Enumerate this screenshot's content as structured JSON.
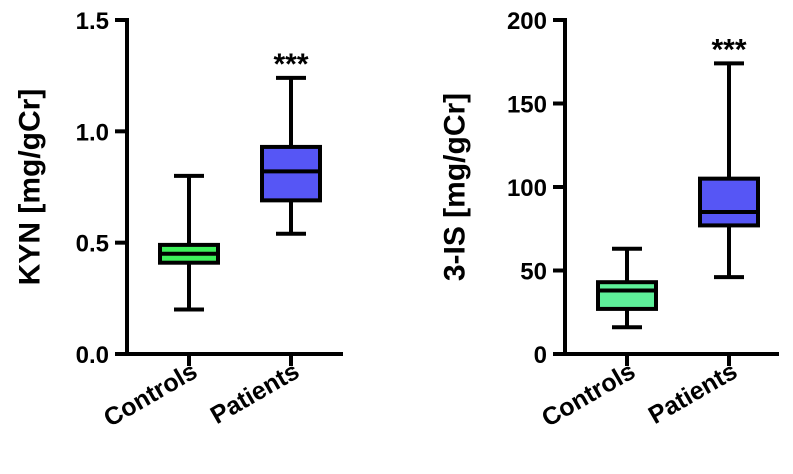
{
  "chart_data": [
    {
      "type": "box",
      "ylabel": "KYN [mg/gCr]",
      "ylim": [
        0,
        1.5
      ],
      "yticks": [
        0.0,
        0.5,
        1.0,
        1.5
      ],
      "ytick_labels": [
        "0.0",
        "0.5",
        "1.0",
        "1.5"
      ],
      "categories": [
        "Controls",
        "Patients"
      ],
      "boxes": [
        {
          "category": "Controls",
          "min": 0.2,
          "q1": 0.41,
          "median": 0.45,
          "q3": 0.49,
          "max": 0.8,
          "color": "#3df05a"
        },
        {
          "category": "Patients",
          "min": 0.54,
          "q1": 0.69,
          "median": 0.82,
          "q3": 0.93,
          "max": 1.24,
          "color": "#5656f5"
        }
      ],
      "annotations": [
        {
          "category": "Patients",
          "text": "***"
        }
      ]
    },
    {
      "type": "box",
      "ylabel": "3-IS [mg/gCr]",
      "ylim": [
        0,
        200
      ],
      "yticks": [
        0,
        50,
        100,
        150,
        200
      ],
      "ytick_labels": [
        "0",
        "50",
        "100",
        "150",
        "200"
      ],
      "categories": [
        "Controls",
        "Patients"
      ],
      "boxes": [
        {
          "category": "Controls",
          "min": 16,
          "q1": 27,
          "median": 38,
          "q3": 43,
          "max": 63,
          "color": "#5ef09a"
        },
        {
          "category": "Patients",
          "min": 46,
          "q1": 77,
          "median": 85,
          "q3": 105,
          "max": 174,
          "color": "#5656f5"
        }
      ],
      "annotations": [
        {
          "category": "Patients",
          "text": "***"
        }
      ]
    }
  ]
}
